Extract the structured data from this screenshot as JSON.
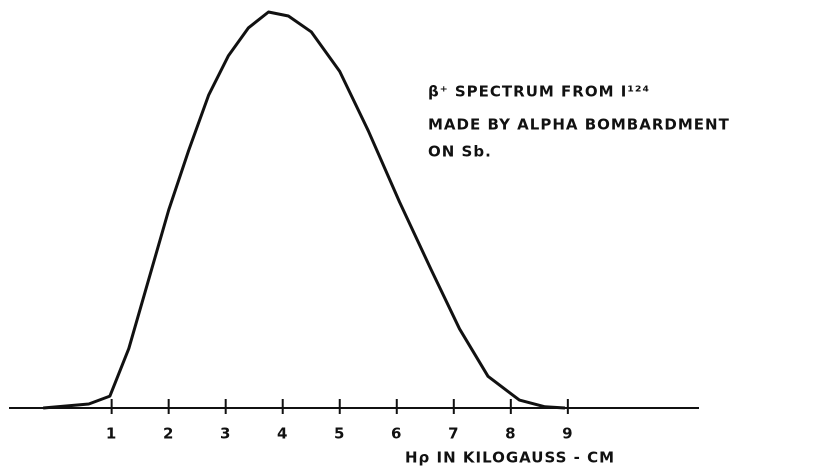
{
  "chart_data": {
    "type": "line",
    "title": "β⁺ SPECTRUM FROM I¹²⁴",
    "subtitle": [
      "MADE BY ALPHA BOMBARDMENT",
      "ON Sb."
    ],
    "x_label": "Hρ IN KILOGAUSS - CM",
    "x": [
      -0.2,
      0.6,
      0.97,
      1.3,
      1.6,
      2.0,
      2.35,
      2.7,
      3.05,
      3.4,
      3.75,
      4.1,
      4.5,
      5.0,
      5.5,
      6.05,
      6.6,
      7.1,
      7.6,
      8.15,
      8.6,
      8.95
    ],
    "values": [
      0,
      1,
      3,
      15,
      30,
      50,
      65,
      79,
      89,
      96,
      100,
      99,
      95,
      85,
      70,
      52,
      35,
      20,
      8,
      2,
      0.3,
      0
    ],
    "color": "#111111",
    "xlim": [
      -0.8,
      11.3
    ],
    "ylim": [
      0,
      100
    ],
    "xticks": [
      1,
      2,
      3,
      4,
      5,
      6,
      7,
      8,
      9
    ]
  }
}
